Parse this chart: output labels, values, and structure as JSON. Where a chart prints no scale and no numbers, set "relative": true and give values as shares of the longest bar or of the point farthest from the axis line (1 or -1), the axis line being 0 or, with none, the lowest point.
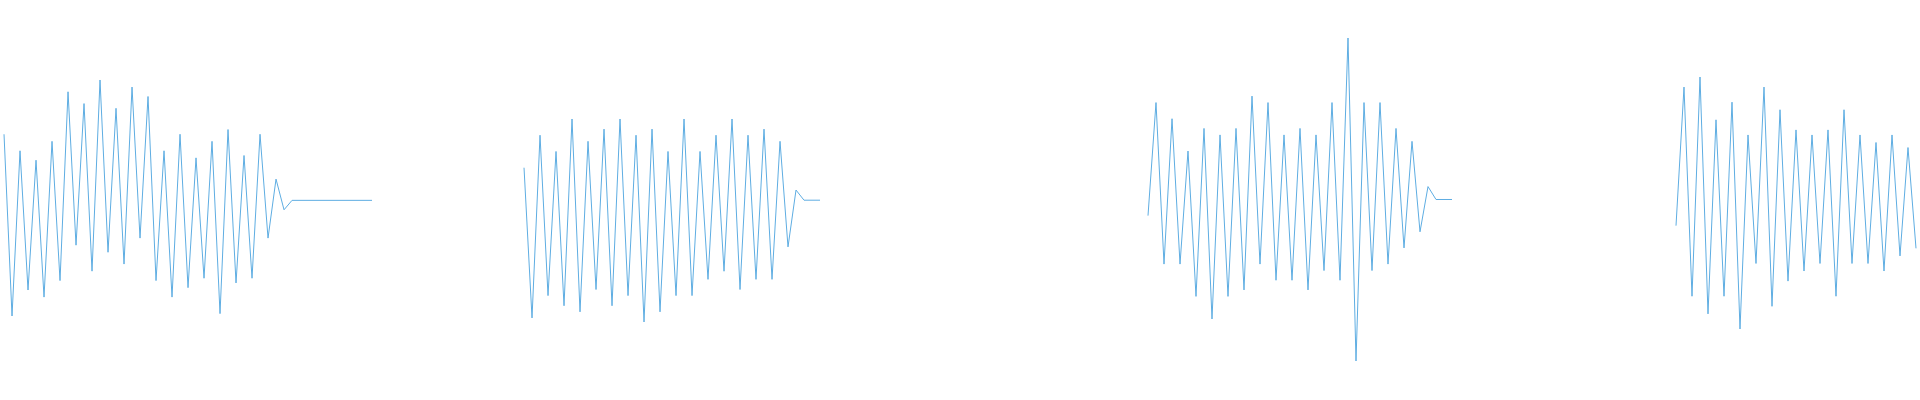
{
  "chart_data": [
    {
      "type": "line",
      "relative": true,
      "color": "#5dade2",
      "categories": [
        null,
        null,
        null,
        null,
        null,
        null,
        null,
        null,
        null,
        null,
        null,
        null,
        null,
        null,
        null,
        null,
        null,
        null,
        null,
        null,
        null,
        null,
        null,
        null,
        null,
        null,
        null,
        null,
        null,
        null,
        null,
        null,
        null,
        null,
        null,
        null,
        null,
        null,
        null,
        null,
        null,
        null,
        null,
        null,
        null,
        null,
        null
      ],
      "values": [
        0.77,
        0,
        0.7,
        0.11,
        0.66,
        0.08,
        0.74,
        0.15,
        0.95,
        0.3,
        0.9,
        0.19,
        1,
        0.27,
        0.88,
        0.22,
        0.97,
        0.33,
        0.93,
        0.15,
        0.7,
        0.08,
        0.77,
        0.12,
        0.67,
        0.16,
        0.74,
        0.01,
        0.79,
        0.14,
        0.68,
        0.16,
        0.77,
        0.33,
        0.58,
        0.45,
        0.49,
        0.49,
        0.49,
        0.49,
        0.49,
        0.49,
        0.49,
        0.49,
        0.49,
        0.49,
        0.49
      ]
    },
    {
      "type": "line",
      "relative": true,
      "color": "#5dade2",
      "categories": [
        null,
        null,
        null,
        null,
        null,
        null,
        null,
        null,
        null,
        null,
        null,
        null,
        null,
        null,
        null,
        null,
        null,
        null,
        null,
        null,
        null,
        null,
        null,
        null,
        null,
        null,
        null,
        null,
        null,
        null,
        null,
        null,
        null,
        null,
        null,
        null,
        null,
        null
      ],
      "values": [
        0.76,
        0.02,
        0.92,
        0.13,
        0.84,
        0.08,
        1,
        0.05,
        0.89,
        0.16,
        0.95,
        0.08,
        1,
        0.13,
        0.92,
        0,
        0.95,
        0.05,
        0.84,
        0.13,
        1,
        0.13,
        0.84,
        0.21,
        0.92,
        0.25,
        1,
        0.16,
        0.92,
        0.21,
        0.95,
        0.21,
        0.89,
        0.37,
        0.65,
        0.6,
        0.6,
        0.6
      ]
    },
    {
      "type": "line",
      "relative": true,
      "color": "#5dade2",
      "categories": [
        null,
        null,
        null,
        null,
        null,
        null,
        null,
        null,
        null,
        null,
        null,
        null,
        null,
        null,
        null,
        null,
        null,
        null,
        null,
        null,
        null,
        null,
        null,
        null,
        null,
        null,
        null,
        null,
        null,
        null,
        null,
        null,
        null,
        null,
        null,
        null,
        null,
        null,
        null
      ],
      "values": [
        0.45,
        0.8,
        0.3,
        0.75,
        0.3,
        0.65,
        0.2,
        0.72,
        0.13,
        0.7,
        0.2,
        0.72,
        0.22,
        0.82,
        0.3,
        0.8,
        0.25,
        0.7,
        0.25,
        0.72,
        0.22,
        0.7,
        0.28,
        0.8,
        0.25,
        1,
        0,
        0.8,
        0.28,
        0.8,
        0.3,
        0.72,
        0.35,
        0.68,
        0.4,
        0.54,
        0.5,
        0.5,
        0.5
      ]
    },
    {
      "type": "line",
      "relative": true,
      "color": "#5dade2",
      "categories": [
        null,
        null,
        null,
        null,
        null,
        null,
        null,
        null,
        null,
        null,
        null,
        null,
        null,
        null,
        null,
        null,
        null,
        null,
        null,
        null,
        null,
        null,
        null,
        null,
        null,
        null,
        null,
        null,
        null,
        null,
        null
      ],
      "values": [
        0.41,
        0.96,
        0.13,
        1,
        0.06,
        0.83,
        0.13,
        0.9,
        0,
        0.77,
        0.26,
        0.96,
        0.09,
        0.87,
        0.19,
        0.79,
        0.23,
        0.77,
        0.26,
        0.79,
        0.13,
        0.87,
        0.26,
        0.77,
        0.26,
        0.74,
        0.23,
        0.77,
        0.29,
        0.72,
        0.32
      ]
    }
  ]
}
